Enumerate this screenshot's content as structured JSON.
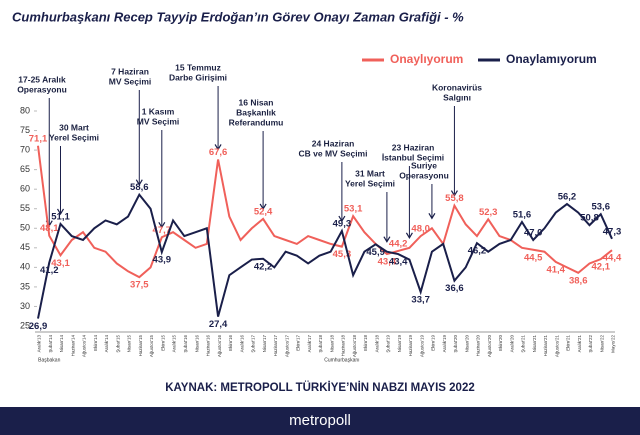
{
  "chart_data": {
    "type": "line",
    "title": "Cumhurbaşkanı Recep Tayyip Erdoğan’ın Görev Onayı Zaman Grafiği - %",
    "categories": [
      "Aralık'13",
      "Şubat'14",
      "Nisan'14",
      "Haziran'14",
      "Ağustos'14",
      "Ekim'14",
      "Aralık'14",
      "Şubat'15",
      "Nisan'15",
      "Haziran'15",
      "Ağustos'15",
      "Ekim'15",
      "Aralık'15",
      "Şubat'16",
      "Nisan'16",
      "Haziran'16",
      "Ağustos'16",
      "Ekim'16",
      "Aralık'16",
      "Şubat'17",
      "Nisan'17",
      "Haziran'17",
      "Ağustos'17",
      "Ekim'17",
      "Aralık'17",
      "Şubat'18",
      "Nisan'18",
      "Haziran'18",
      "Ağustos'18",
      "Ekim'18",
      "Aralık'18",
      "Şubat'19",
      "Nisan'19",
      "Haziran'19",
      "Ağustos'19",
      "Ekim'19",
      "Aralık'19",
      "Şubat'20",
      "Nisan'20",
      "Haziran'20",
      "Ağustos'20",
      "Ekim'20",
      "Aralık'20",
      "Şubat'21",
      "Nisan'21",
      "Haziran'21",
      "Ağustos'21",
      "Ekim'21",
      "Aralık'21",
      "Şubat'22",
      "Nisan'22",
      "Mayıs'22"
    ],
    "series": [
      {
        "name": "Onaylıyorum",
        "color": "#f0605a",
        "values": [
          71.1,
          48.1,
          43.1,
          47,
          49,
          45,
          44,
          41,
          39,
          37.5,
          40,
          47.7,
          49,
          47,
          45,
          46,
          67.6,
          53,
          47,
          50,
          52.4,
          48,
          47,
          46,
          48,
          47,
          46,
          45.3,
          53.1,
          49,
          46,
          43.4,
          44.2,
          45,
          48.0,
          50,
          46,
          55.8,
          51,
          48,
          52.3,
          48,
          47,
          45,
          44.5,
          44,
          41.4,
          40,
          38.6,
          41,
          42.1,
          44.4
        ],
        "value_labels": [
          "71,1",
          "48,1",
          "43,1",
          null,
          null,
          null,
          null,
          null,
          null,
          "37,5",
          null,
          "47,7",
          null,
          null,
          null,
          null,
          "67,6",
          null,
          null,
          null,
          "52,4",
          null,
          null,
          null,
          null,
          null,
          null,
          "45,3",
          "53,1",
          null,
          null,
          "43,4",
          "44,2",
          null,
          "48,0",
          null,
          null,
          "55,8",
          null,
          null,
          "52,3",
          null,
          null,
          null,
          "44,5",
          null,
          "41,4",
          null,
          "38,6",
          null,
          "42,1",
          "44,4"
        ]
      },
      {
        "name": "Onaylamıyorum",
        "color": "#1a1f4a",
        "values": [
          26.9,
          41.2,
          51.1,
          48,
          47,
          50,
          52,
          51,
          53,
          58.6,
          55,
          43.9,
          52,
          48,
          49,
          50,
          27.4,
          38,
          40,
          42,
          42.2,
          40,
          44,
          43,
          41,
          43,
          44,
          49.3,
          38,
          44,
          45.9,
          44,
          43.4,
          42,
          33.7,
          44,
          46,
          36.6,
          40,
          46.2,
          44,
          46,
          47,
          51.6,
          47.0,
          50,
          54,
          56.2,
          54,
          50.8,
          53.6,
          47.3
        ],
        "value_labels": [
          "26,9",
          "41,2",
          "51,1",
          null,
          null,
          null,
          null,
          null,
          null,
          "58,6",
          null,
          "43,9",
          null,
          null,
          null,
          null,
          "27,4",
          null,
          null,
          null,
          "42,2",
          null,
          null,
          null,
          null,
          null,
          null,
          "49,3",
          null,
          null,
          "45,9",
          null,
          "43,4",
          null,
          "33,7",
          null,
          null,
          "36,6",
          null,
          "46,2",
          null,
          null,
          null,
          "51,6",
          "47,0",
          null,
          null,
          "56,2",
          null,
          "50,8",
          "53,6",
          "47,3"
        ]
      }
    ],
    "ylim": [
      25,
      80
    ],
    "yticks": [
      25,
      30,
      35,
      40,
      45,
      50,
      55,
      60,
      65,
      70,
      75,
      80
    ],
    "grid": false,
    "annotations": [
      [
        "17-25 Aralık",
        "Operasyonu"
      ],
      [
        "30 Mart",
        "Yerel Seçimi"
      ],
      [
        "7 Haziran",
        "MV Seçimi"
      ],
      [
        "1 Kasım",
        "MV Seçimi"
      ],
      [
        "15 Temmuz",
        "Darbe Girişimi"
      ],
      [
        "16 Nisan",
        "Başkanlık",
        "Referandumu"
      ],
      [
        "24 Haziran",
        "CB  ve MV Seçimi"
      ],
      [
        "31 Mart",
        "Yerel Seçimi"
      ],
      [
        "23 Haziran",
        "İstanbul Seçimi"
      ],
      [
        "Suriye",
        "Operasyonu"
      ],
      [
        "Koronavirüs",
        "Salgını"
      ]
    ],
    "periods": [
      "Başbakan",
      "Cumhurbaşkanı"
    ],
    "source": "KAYNAK: METROPOLL TÜRKİYE’NİN NABZI MAYIS 2022",
    "brand": "metropoll"
  }
}
